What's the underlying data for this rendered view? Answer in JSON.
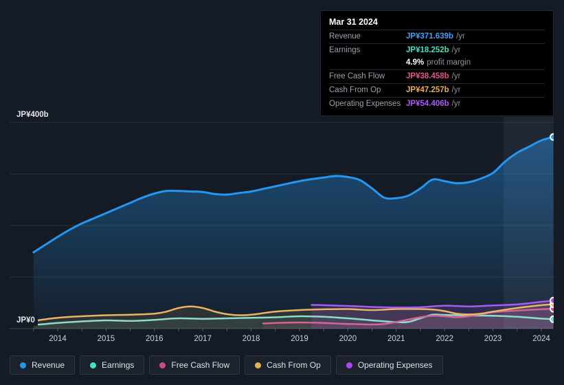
{
  "tooltip": {
    "date": "Mar 31 2024",
    "rows": [
      {
        "label": "Revenue",
        "value": "JP¥371.639b",
        "suffix": "/yr",
        "color": "#42a0f2"
      },
      {
        "label": "Earnings",
        "value": "JP¥18.252b",
        "suffix": "/yr",
        "color": "#3fe1c1"
      },
      {
        "label": "",
        "value": "4.9%",
        "suffix": "profit margin",
        "color": "#ffffff"
      },
      {
        "label": "Free Cash Flow",
        "value": "JP¥38.458b",
        "suffix": "/yr",
        "color": "#e0558f"
      },
      {
        "label": "Cash From Op",
        "value": "JP¥47.257b",
        "suffix": "/yr",
        "color": "#eaaf52"
      },
      {
        "label": "Operating Expenses",
        "value": "JP¥54.406b",
        "suffix": "/yr",
        "color": "#ae58f4"
      }
    ]
  },
  "axis": {
    "y_top_label": "JP¥400b",
    "y_zero_label": "JP¥0"
  },
  "legend": {
    "items": [
      {
        "label": "Revenue",
        "color": "#1f97ee"
      },
      {
        "label": "Earnings",
        "color": "#40e3c3"
      },
      {
        "label": "Free Cash Flow",
        "color": "#cb4d84"
      },
      {
        "label": "Cash From Op",
        "color": "#e7ae56"
      },
      {
        "label": "Operating Expenses",
        "color": "#ad46f3"
      }
    ]
  },
  "chart_data": {
    "type": "line",
    "x_unit": "year",
    "x_ticks": [
      2014,
      2015,
      2016,
      2017,
      2018,
      2019,
      2020,
      2021,
      2022,
      2023,
      2024
    ],
    "xlim": [
      2013.4,
      2024.3
    ],
    "ylim": [
      0,
      400
    ],
    "y_gridlines": [
      100,
      200,
      300,
      400
    ],
    "currency": "JP¥ billions",
    "legend_position": "bottom",
    "highlight_band_x": [
      2023.22,
      2024.3
    ],
    "series": [
      {
        "name": "Revenue",
        "color": "#2596f2",
        "line_width": 3,
        "fill": "gradient",
        "points": [
          [
            2013.5,
            148
          ],
          [
            2013.75,
            163
          ],
          [
            2014,
            178
          ],
          [
            2014.25,
            192
          ],
          [
            2014.5,
            204
          ],
          [
            2014.75,
            214
          ],
          [
            2015,
            224
          ],
          [
            2015.25,
            234
          ],
          [
            2015.5,
            244
          ],
          [
            2015.75,
            254
          ],
          [
            2016,
            262
          ],
          [
            2016.25,
            267
          ],
          [
            2016.5,
            267
          ],
          [
            2016.75,
            266
          ],
          [
            2017,
            265
          ],
          [
            2017.25,
            261
          ],
          [
            2017.5,
            260
          ],
          [
            2017.75,
            263
          ],
          [
            2018,
            266
          ],
          [
            2018.25,
            271
          ],
          [
            2018.5,
            276
          ],
          [
            2018.75,
            281
          ],
          [
            2019,
            286
          ],
          [
            2019.25,
            290
          ],
          [
            2019.5,
            293
          ],
          [
            2019.75,
            296
          ],
          [
            2020,
            294
          ],
          [
            2020.25,
            288
          ],
          [
            2020.5,
            272
          ],
          [
            2020.75,
            254
          ],
          [
            2021,
            253
          ],
          [
            2021.25,
            258
          ],
          [
            2021.5,
            272
          ],
          [
            2021.75,
            289
          ],
          [
            2022,
            286
          ],
          [
            2022.25,
            282
          ],
          [
            2022.5,
            284
          ],
          [
            2022.75,
            291
          ],
          [
            2023,
            302
          ],
          [
            2023.25,
            324
          ],
          [
            2023.5,
            341
          ],
          [
            2023.75,
            353
          ],
          [
            2024,
            365
          ],
          [
            2024.25,
            371.639
          ]
        ]
      },
      {
        "name": "Earnings",
        "color": "#40e3c3",
        "line_color": "#8edccb",
        "line_width": 2.5,
        "fill": "rgba(80,220,190,0.10)",
        "points": [
          [
            2013.5,
            7
          ],
          [
            2014,
            11
          ],
          [
            2014.5,
            14
          ],
          [
            2015,
            16
          ],
          [
            2015.5,
            15
          ],
          [
            2016,
            17
          ],
          [
            2016.5,
            20
          ],
          [
            2017,
            19
          ],
          [
            2017.5,
            20
          ],
          [
            2018,
            21
          ],
          [
            2018.5,
            22
          ],
          [
            2019,
            24
          ],
          [
            2019.5,
            23
          ],
          [
            2020,
            20
          ],
          [
            2020.5,
            16
          ],
          [
            2021,
            12.5
          ],
          [
            2021.25,
            13
          ],
          [
            2021.5,
            20
          ],
          [
            2021.75,
            27
          ],
          [
            2022,
            26.5
          ],
          [
            2022.5,
            25.5
          ],
          [
            2023,
            25
          ],
          [
            2023.5,
            23
          ],
          [
            2024,
            19.5
          ],
          [
            2024.25,
            18.252
          ]
        ]
      },
      {
        "name": "Free Cash Flow",
        "color": "#cb4d84",
        "line_color": "#d86397",
        "line_width": 2.5,
        "fill": "rgba(214,84,142,0.12)",
        "points": [
          [
            2018.25,
            10
          ],
          [
            2018.5,
            11
          ],
          [
            2019,
            12
          ],
          [
            2019.5,
            11
          ],
          [
            2020,
            9
          ],
          [
            2020.5,
            8
          ],
          [
            2020.75,
            9
          ],
          [
            2021,
            13
          ],
          [
            2021.5,
            22
          ],
          [
            2021.75,
            25
          ],
          [
            2022,
            24
          ],
          [
            2022.25,
            22
          ],
          [
            2022.5,
            24
          ],
          [
            2022.75,
            28
          ],
          [
            2023,
            32
          ],
          [
            2023.5,
            35
          ],
          [
            2024,
            37.5
          ],
          [
            2024.25,
            38.458
          ]
        ]
      },
      {
        "name": "Cash From Op",
        "color": "#e7ae56",
        "line_color": "#eab466",
        "line_width": 2.5,
        "fill": "rgba(234,176,94,0.12)",
        "points": [
          [
            2013.5,
            15
          ],
          [
            2014,
            21
          ],
          [
            2014.5,
            24
          ],
          [
            2015,
            26
          ],
          [
            2015.5,
            27
          ],
          [
            2016,
            29
          ],
          [
            2016.25,
            33
          ],
          [
            2016.5,
            40
          ],
          [
            2016.75,
            43
          ],
          [
            2017,
            40
          ],
          [
            2017.25,
            33
          ],
          [
            2017.5,
            28
          ],
          [
            2017.75,
            26
          ],
          [
            2018,
            27
          ],
          [
            2018.5,
            33
          ],
          [
            2019,
            36
          ],
          [
            2019.5,
            37.5
          ],
          [
            2020,
            38
          ],
          [
            2020.5,
            36
          ],
          [
            2021,
            38
          ],
          [
            2021.5,
            38
          ],
          [
            2021.75,
            37
          ],
          [
            2022,
            34
          ],
          [
            2022.25,
            29
          ],
          [
            2022.5,
            27.5
          ],
          [
            2022.75,
            29
          ],
          [
            2023,
            33
          ],
          [
            2023.5,
            40
          ],
          [
            2024,
            45.5
          ],
          [
            2024.25,
            47.257
          ]
        ]
      },
      {
        "name": "Operating Expenses",
        "color": "#ad46f3",
        "line_color": "#a65cf2",
        "line_width": 2.5,
        "fill": "rgba(166,84,240,0.18)",
        "points": [
          [
            2019.25,
            46
          ],
          [
            2019.5,
            45.5
          ],
          [
            2020,
            44
          ],
          [
            2020.5,
            42
          ],
          [
            2021,
            41
          ],
          [
            2021.5,
            41.5
          ],
          [
            2022,
            44.5
          ],
          [
            2022.5,
            43
          ],
          [
            2023,
            45
          ],
          [
            2023.5,
            47
          ],
          [
            2024,
            52
          ],
          [
            2024.25,
            54.406
          ]
        ]
      }
    ]
  }
}
